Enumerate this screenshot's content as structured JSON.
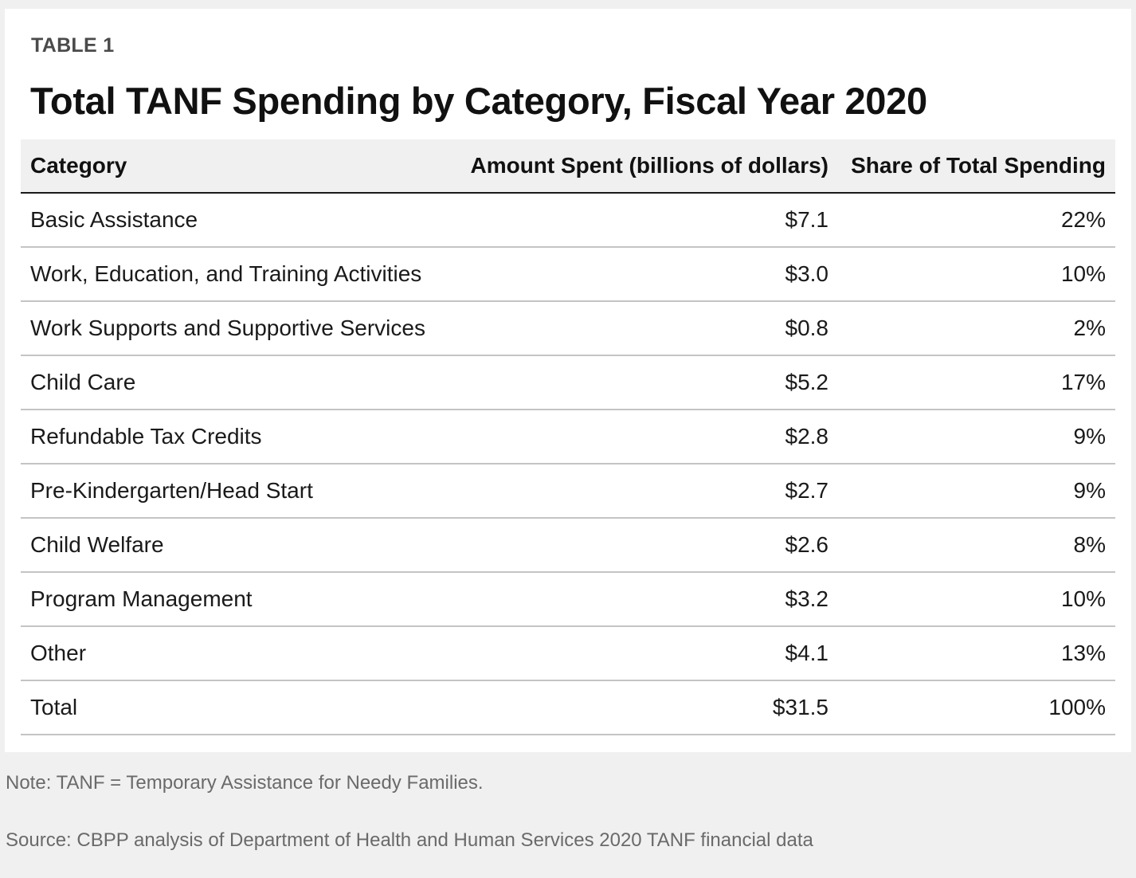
{
  "label": "TABLE 1",
  "title": "Total TANF Spending by Category, Fiscal Year 2020",
  "columns": [
    "Category",
    "Amount Spent (billions of dollars)",
    "Share of Total Spending"
  ],
  "rows": [
    {
      "category": "Basic Assistance",
      "amount": "$7.1",
      "share": "22%"
    },
    {
      "category": "Work, Education, and Training Activities",
      "amount": "$3.0",
      "share": "10%"
    },
    {
      "category": "Work Supports and Supportive Services",
      "amount": "$0.8",
      "share": "2%"
    },
    {
      "category": "Child Care",
      "amount": "$5.2",
      "share": "17%"
    },
    {
      "category": "Refundable Tax Credits",
      "amount": "$2.8",
      "share": "9%"
    },
    {
      "category": "Pre-Kindergarten/Head Start",
      "amount": "$2.7",
      "share": "9%"
    },
    {
      "category": "Child Welfare",
      "amount": "$2.6",
      "share": "8%"
    },
    {
      "category": "Program Management",
      "amount": "$3.2",
      "share": "10%"
    },
    {
      "category": "Other",
      "amount": "$4.1",
      "share": "13%"
    },
    {
      "category": "Total",
      "amount": "$31.5",
      "share": "100%"
    }
  ],
  "note": "Note: TANF = Temporary Assistance for Needy Families.",
  "source": "Source: CBPP analysis of Department of Health and Human Services 2020 TANF financial data",
  "chart_data": {
    "type": "table",
    "title": "Total TANF Spending by Category, Fiscal Year 2020",
    "columns": [
      "Category",
      "Amount Spent (billions of dollars)",
      "Share of Total Spending"
    ],
    "categories": [
      "Basic Assistance",
      "Work, Education, and Training Activities",
      "Work Supports and Supportive Services",
      "Child Care",
      "Refundable Tax Credits",
      "Pre-Kindergarten/Head Start",
      "Child Welfare",
      "Program Management",
      "Other",
      "Total"
    ],
    "series": [
      {
        "name": "Amount Spent (billions of dollars)",
        "values": [
          7.1,
          3.0,
          0.8,
          5.2,
          2.8,
          2.7,
          2.6,
          3.2,
          4.1,
          31.5
        ]
      },
      {
        "name": "Share of Total Spending (%)",
        "values": [
          22,
          10,
          2,
          17,
          9,
          9,
          8,
          10,
          13,
          100
        ]
      }
    ]
  }
}
